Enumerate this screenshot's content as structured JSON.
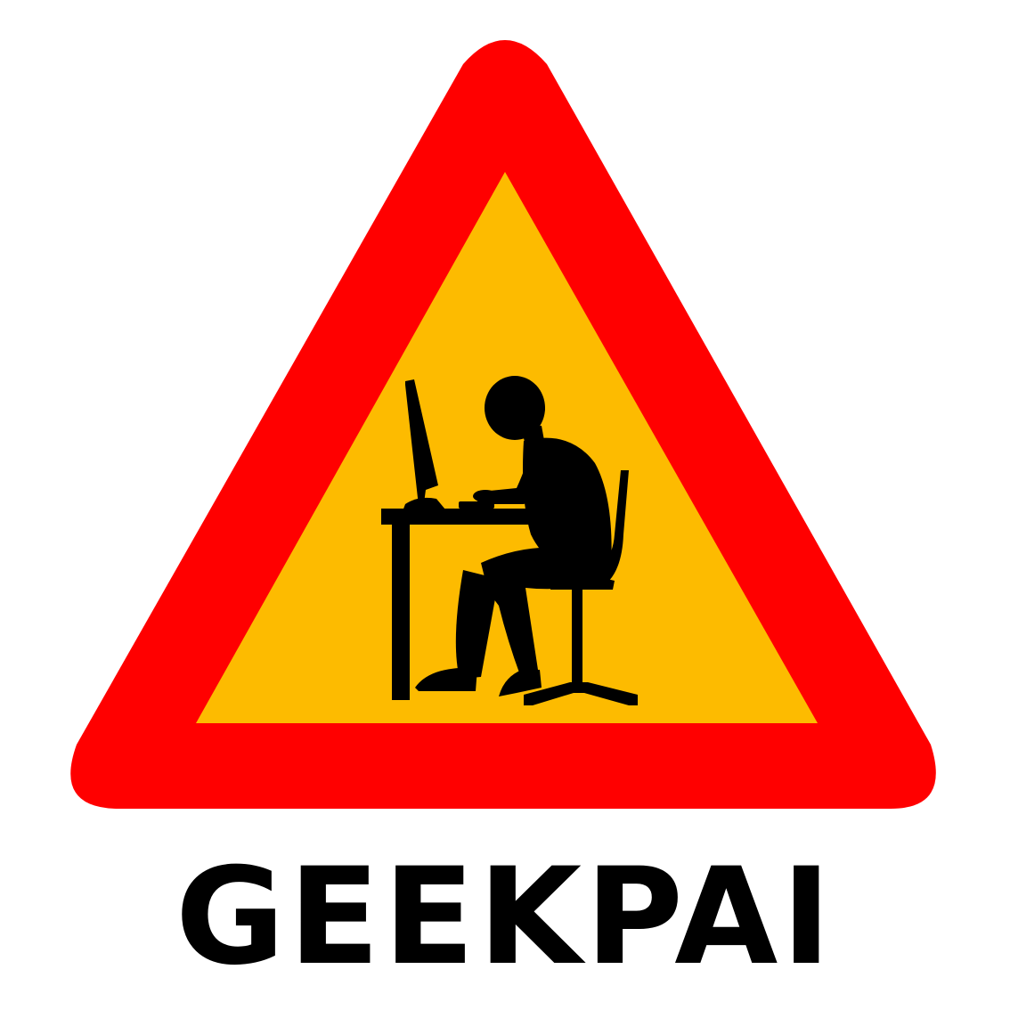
{
  "logo": {
    "brand_name": "GEEKPAI",
    "icon": "warning-triangle-computer-user-icon",
    "colors": {
      "border": "#ff0000",
      "fill": "#fdbb00",
      "silhouette": "#000000",
      "background": "#ffffff"
    }
  }
}
